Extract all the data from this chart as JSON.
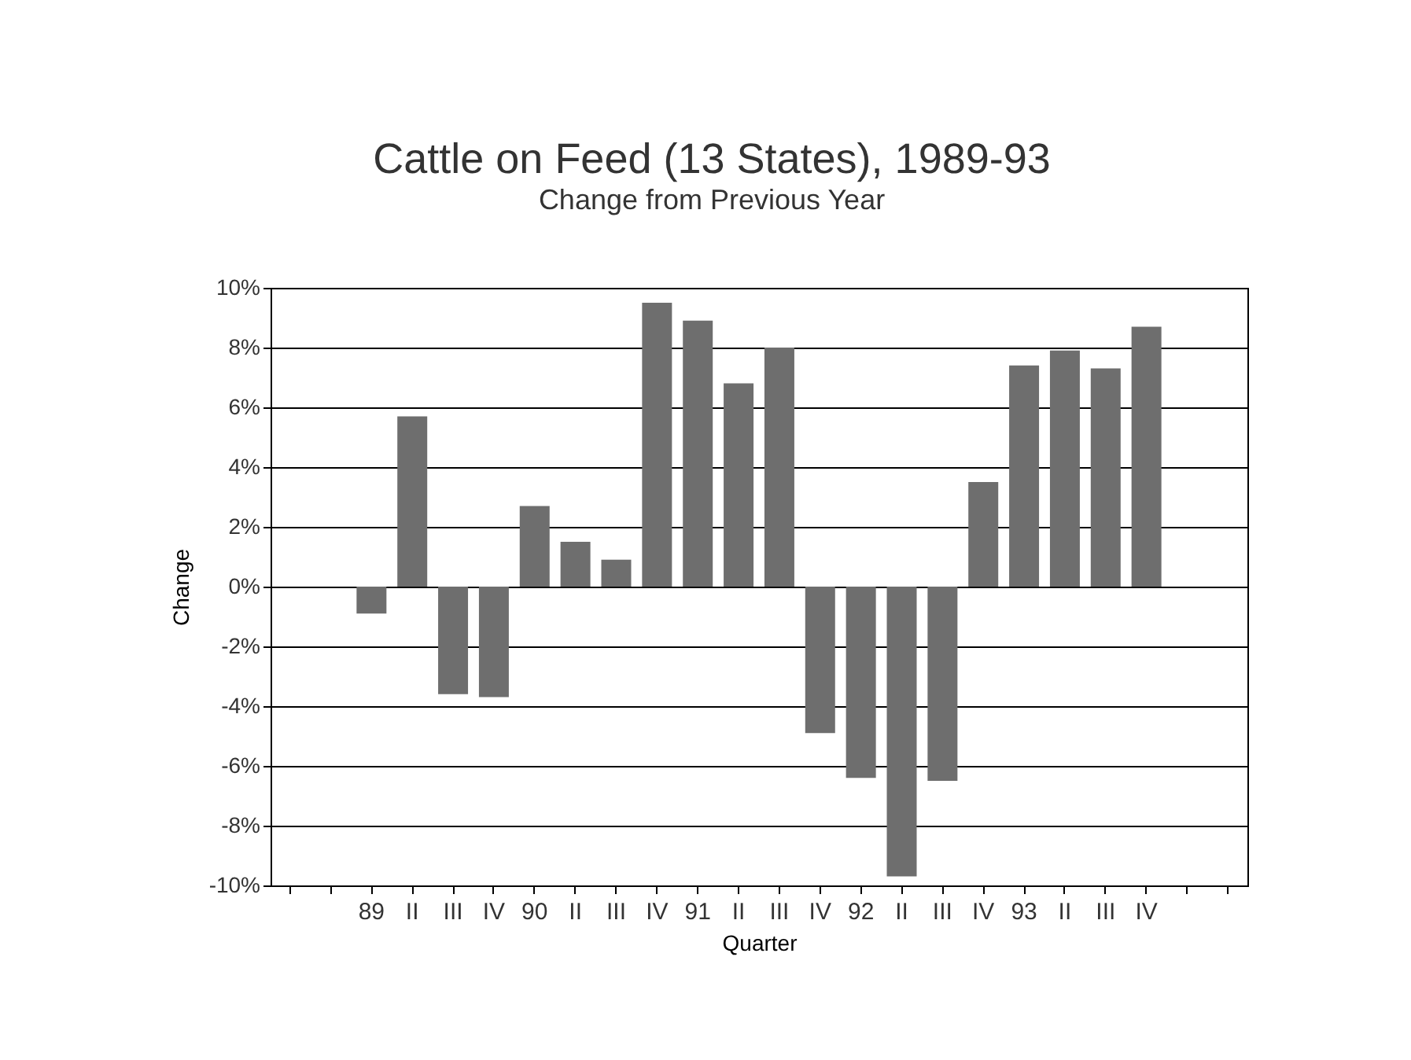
{
  "chart_data": {
    "type": "bar",
    "title": "Cattle on Feed (13 States),  1989-93",
    "subtitle": "Change from Previous Year",
    "xlabel": "Quarter",
    "ylabel": "Change",
    "categories": [
      null,
      null,
      "89",
      "II",
      "III",
      "IV",
      "90",
      "II",
      "III",
      "IV",
      "91",
      "II",
      "III",
      "IV",
      "92",
      "II",
      "III",
      "IV",
      "93",
      "II",
      "III",
      "IV",
      null,
      null
    ],
    "values": [
      null,
      null,
      -0.9,
      5.7,
      -3.6,
      -3.7,
      2.7,
      1.5,
      0.9,
      9.5,
      8.9,
      6.8,
      8.0,
      -4.9,
      -6.4,
      -9.7,
      -6.5,
      3.5,
      7.4,
      7.9,
      7.3,
      8.7,
      null,
      null
    ],
    "color": "#6e6e6e",
    "ylim": [
      -10,
      10
    ],
    "yticks": [
      {
        "value": -10,
        "label": "-10%"
      },
      {
        "value": -8,
        "label": "-8%"
      },
      {
        "value": -6,
        "label": "-6%"
      },
      {
        "value": -4,
        "label": "-4%"
      },
      {
        "value": -2,
        "label": "-2%"
      },
      {
        "value": 0,
        "label": "0%"
      },
      {
        "value": 2,
        "label": "2%"
      },
      {
        "value": 4,
        "label": "4%"
      },
      {
        "value": 6,
        "label": "6%"
      },
      {
        "value": 8,
        "label": "8%"
      },
      {
        "value": 10,
        "label": "10%"
      }
    ],
    "grid": "y"
  }
}
